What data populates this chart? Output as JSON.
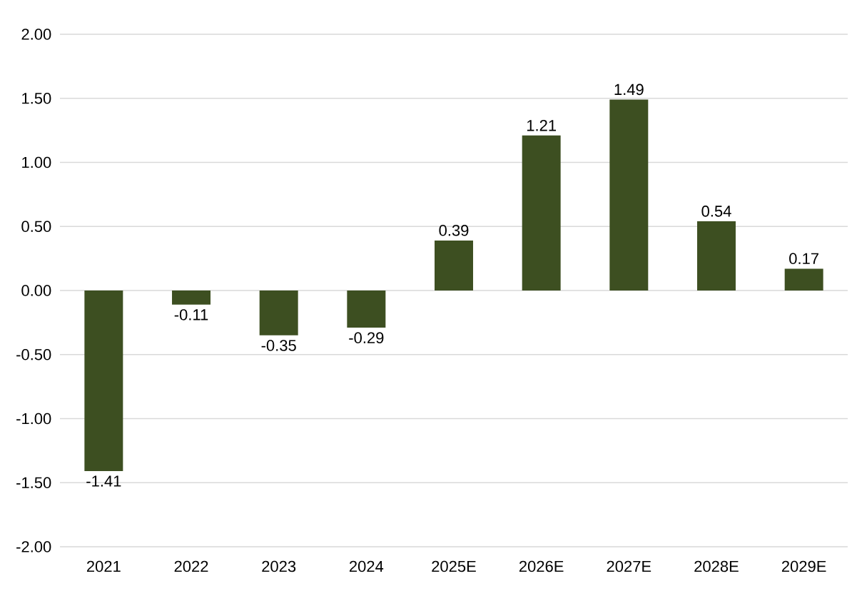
{
  "chart_data": {
    "type": "bar",
    "categories": [
      "2021",
      "2022",
      "2023",
      "2024",
      "2025E",
      "2026E",
      "2027E",
      "2028E",
      "2029E"
    ],
    "values": [
      -1.41,
      -0.11,
      -0.35,
      -0.29,
      0.39,
      1.21,
      1.49,
      0.54,
      0.17
    ],
    "value_labels": [
      "-1.41",
      "-0.11",
      "-0.35",
      "-0.29",
      "0.39",
      "1.21",
      "1.49",
      "0.54",
      "0.17"
    ],
    "color": "#3d4f21",
    "ylim": [
      -2,
      2
    ],
    "yticks": [
      {
        "value": -2,
        "label": "-2.00"
      },
      {
        "value": -1.5,
        "label": "-1.50"
      },
      {
        "value": -1,
        "label": "-1.00"
      },
      {
        "value": -0.5,
        "label": "-0.50"
      },
      {
        "value": 0,
        "label": "0.00"
      },
      {
        "value": 0.5,
        "label": "0.50"
      },
      {
        "value": 1,
        "label": "1.00"
      },
      {
        "value": 1.5,
        "label": "1.50"
      },
      {
        "value": 2,
        "label": "2.00"
      }
    ],
    "grid": "y"
  }
}
